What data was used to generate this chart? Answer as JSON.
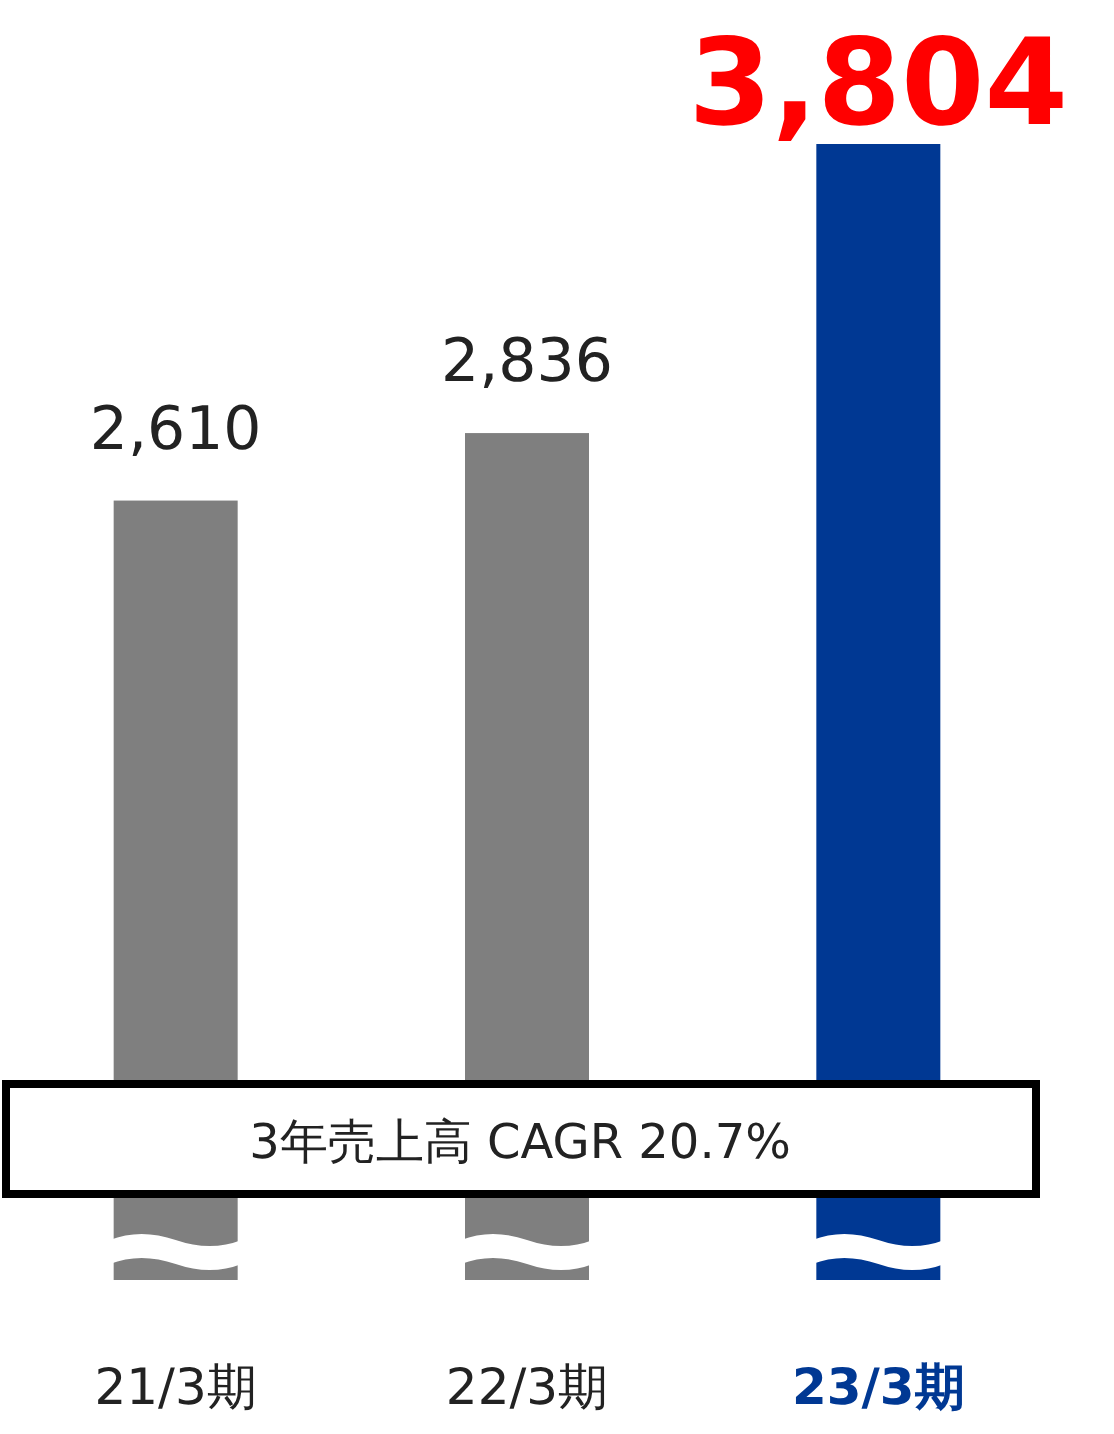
{
  "chart_data": {
    "type": "bar",
    "categories": [
      "21/3期",
      "22/3期",
      "23/3期"
    ],
    "values": [
      2610,
      2836,
      3804
    ],
    "colors": [
      "#7f7f7f",
      "#7f7f7f",
      "#003893"
    ],
    "value_labels": [
      "2,610",
      "2,836",
      "3,804"
    ],
    "annotations": [
      "3年売上高 CAGR 20.7%"
    ]
  }
}
